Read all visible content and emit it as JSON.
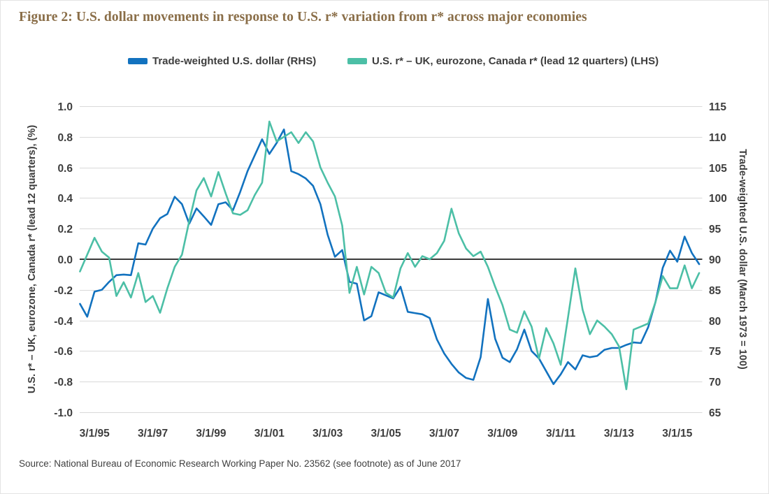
{
  "page": {
    "source_note": "Source: National Bureau of Economic Research Working Paper No. 23562 (see footnote) as of June 2017"
  },
  "colors": {
    "usd_line": "#1272bf",
    "rstar_line": "#4cbfa6",
    "title_text": "#8a6e48",
    "axis_text": "#3d3d3d",
    "gridline": "#d9d9d9",
    "zero_line": "#3a3a3a"
  },
  "legend": {
    "items": [
      {
        "label": "Trade-weighted U.S. dollar (RHS)",
        "color": "#1272bf"
      },
      {
        "label": "U.S. r* – UK, eurozone, Canada r* (lead 12 quarters) (LHS)",
        "color": "#4cbfa6"
      }
    ]
  },
  "chart_data": {
    "type": "line",
    "title": "Figure 2: U.S. dollar movements in response to U.S. r* variation from r* across major economies",
    "x_tick_labels": [
      "3/1/95",
      "3/1/97",
      "3/1/99",
      "3/1/01",
      "3/1/03",
      "3/1/05",
      "3/1/07",
      "3/1/09",
      "3/1/11",
      "3/1/13",
      "3/1/15"
    ],
    "x_points": {
      "frequency": "quarterly",
      "start": "1994-Q3",
      "end": "2015-Q4",
      "count": 86
    },
    "grid": "horizontal",
    "zero_line": true,
    "legend_position": "top",
    "left_axis": {
      "label": "U.S. r* – UK, eurozone, Canada r* (lead 12 quarters), (%)",
      "min": -1.0,
      "max": 1.0,
      "step": 0.2,
      "ticks": [
        "1.0",
        "0.8",
        "0.6",
        "0.4",
        "0.2",
        "0.0",
        "-0.2",
        "-0.4",
        "-0.6",
        "-0.8",
        "-1.0"
      ]
    },
    "right_axis": {
      "label": "Trade-weighted U.S. dollar (March 1973 = 100)",
      "min": 65,
      "max": 115,
      "step": 5,
      "ticks": [
        "115",
        "110",
        "105",
        "100",
        "95",
        "90",
        "85",
        "80",
        "75",
        "70",
        "65"
      ]
    },
    "series": [
      {
        "name": "Trade-weighted U.S. dollar (RHS)",
        "axis": "right",
        "color": "#1272bf",
        "values": [
          82.7,
          80.6,
          84.7,
          85.0,
          86.3,
          87.4,
          87.5,
          87.4,
          92.6,
          92.4,
          95.0,
          96.7,
          97.4,
          100.2,
          99.0,
          95.8,
          98.3,
          97.0,
          95.6,
          99.0,
          99.3,
          98.0,
          101.0,
          104.4,
          107.0,
          109.6,
          107.2,
          109.0,
          111.2,
          104.4,
          103.9,
          103.2,
          102.0,
          99.0,
          94.0,
          90.4,
          91.5,
          86.3,
          86.0,
          80.0,
          80.7,
          84.6,
          84.1,
          83.6,
          85.5,
          81.4,
          81.2,
          81.0,
          80.4,
          76.9,
          74.6,
          72.9,
          71.5,
          70.6,
          70.3,
          74.0,
          83.5,
          77.0,
          73.9,
          73.2,
          75.3,
          78.5,
          75.0,
          73.8,
          71.7,
          69.6,
          71.2,
          73.2,
          72.0,
          74.3,
          74.0,
          74.2,
          75.2,
          75.5,
          75.5,
          76.0,
          76.4,
          76.3,
          78.9,
          83.0,
          88.6,
          91.4,
          89.6,
          93.7,
          91.0,
          89.2
        ]
      },
      {
        "name": "U.S. r* – UK, eurozone, Canada r* (lead 12 quarters) (LHS)",
        "axis": "left",
        "color": "#4cbfa6",
        "values": [
          -0.08,
          0.03,
          0.14,
          0.05,
          0.01,
          -0.24,
          -0.15,
          -0.25,
          -0.09,
          -0.28,
          -0.24,
          -0.35,
          -0.19,
          -0.05,
          0.03,
          0.25,
          0.45,
          0.53,
          0.41,
          0.57,
          0.43,
          0.3,
          0.29,
          0.32,
          0.42,
          0.5,
          0.9,
          0.77,
          0.8,
          0.83,
          0.76,
          0.83,
          0.77,
          0.6,
          0.5,
          0.41,
          0.22,
          -0.22,
          -0.05,
          -0.23,
          -0.05,
          -0.09,
          -0.22,
          -0.25,
          -0.06,
          0.04,
          -0.05,
          0.02,
          0.0,
          0.04,
          0.12,
          0.33,
          0.17,
          0.07,
          0.02,
          0.05,
          -0.05,
          -0.18,
          -0.3,
          -0.46,
          -0.48,
          -0.34,
          -0.44,
          -0.65,
          -0.45,
          -0.55,
          -0.69,
          -0.38,
          -0.06,
          -0.33,
          -0.49,
          -0.4,
          -0.44,
          -0.49,
          -0.57,
          -0.85,
          -0.46,
          -0.44,
          -0.42,
          -0.28,
          -0.11,
          -0.19,
          -0.19,
          -0.04,
          -0.19,
          -0.09
        ]
      }
    ]
  }
}
